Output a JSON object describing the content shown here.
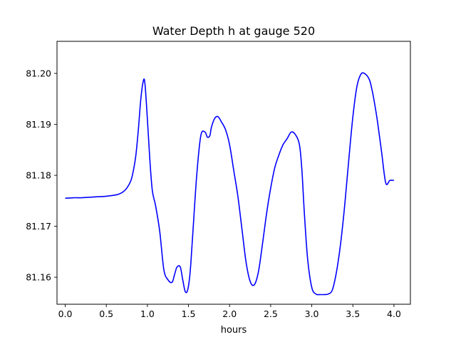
{
  "chart_data": {
    "type": "line",
    "title": "Water Depth h at gauge 520",
    "xlabel": "hours",
    "ylabel": "",
    "xlim": [
      -0.1,
      4.2
    ],
    "ylim": [
      81.1547,
      81.2063
    ],
    "x_ticks": [
      0.0,
      0.5,
      1.0,
      1.5,
      2.0,
      2.5,
      3.0,
      3.5,
      4.0
    ],
    "x_tick_labels": [
      "0.0",
      "0.5",
      "1.0",
      "1.5",
      "2.0",
      "2.5",
      "3.0",
      "3.5",
      "4.0"
    ],
    "y_ticks": [
      81.16,
      81.17,
      81.18,
      81.19,
      81.2
    ],
    "y_tick_labels": [
      "81.16",
      "81.17",
      "81.18",
      "81.19",
      "81.20"
    ],
    "grid": false,
    "series": [
      {
        "color": "#0000ff",
        "x": [
          0.0,
          0.1,
          0.2,
          0.3,
          0.4,
          0.5,
          0.6,
          0.65,
          0.7,
          0.75,
          0.8,
          0.83,
          0.86,
          0.89,
          0.92,
          0.95,
          0.97,
          1.0,
          1.03,
          1.06,
          1.1,
          1.15,
          1.2,
          1.25,
          1.3,
          1.33,
          1.36,
          1.4,
          1.43,
          1.46,
          1.49,
          1.52,
          1.55,
          1.6,
          1.65,
          1.7,
          1.73,
          1.76,
          1.78,
          1.82,
          1.86,
          1.9,
          1.95,
          2.0,
          2.05,
          2.1,
          2.15,
          2.2,
          2.25,
          2.3,
          2.35,
          2.4,
          2.45,
          2.5,
          2.55,
          2.6,
          2.65,
          2.7,
          2.75,
          2.8,
          2.85,
          2.88,
          2.91,
          2.95,
          3.0,
          3.05,
          3.1,
          3.15,
          3.2,
          3.25,
          3.3,
          3.35,
          3.4,
          3.45,
          3.5,
          3.55,
          3.6,
          3.65,
          3.7,
          3.73,
          3.76,
          3.8,
          3.85,
          3.9,
          3.95,
          4.0
        ],
        "values": [
          81.1755,
          81.1756,
          81.1756,
          81.1757,
          81.1758,
          81.1759,
          81.1761,
          81.1763,
          81.1767,
          81.1775,
          81.179,
          81.181,
          81.184,
          81.189,
          81.195,
          81.1985,
          81.198,
          81.191,
          81.183,
          81.177,
          81.174,
          81.169,
          81.1615,
          81.1595,
          81.159,
          81.1605,
          81.162,
          81.162,
          81.1595,
          81.1572,
          81.1575,
          81.161,
          81.168,
          81.18,
          81.1878,
          81.1885,
          81.1875,
          81.1878,
          81.1895,
          81.1912,
          81.1915,
          81.1905,
          81.189,
          81.186,
          81.181,
          81.176,
          81.1695,
          81.163,
          81.1592,
          81.1585,
          81.161,
          81.1665,
          81.1725,
          81.1775,
          81.1815,
          81.184,
          81.186,
          81.1872,
          81.1885,
          81.188,
          81.186,
          81.181,
          81.1725,
          81.1635,
          81.158,
          81.1567,
          81.1566,
          81.1566,
          81.1567,
          81.1575,
          81.161,
          81.1665,
          81.174,
          81.183,
          81.1915,
          81.1975,
          81.1999,
          81.1999,
          81.1988,
          81.197,
          81.1945,
          81.1905,
          81.1845,
          81.1785,
          81.179,
          81.179
        ]
      }
    ]
  }
}
